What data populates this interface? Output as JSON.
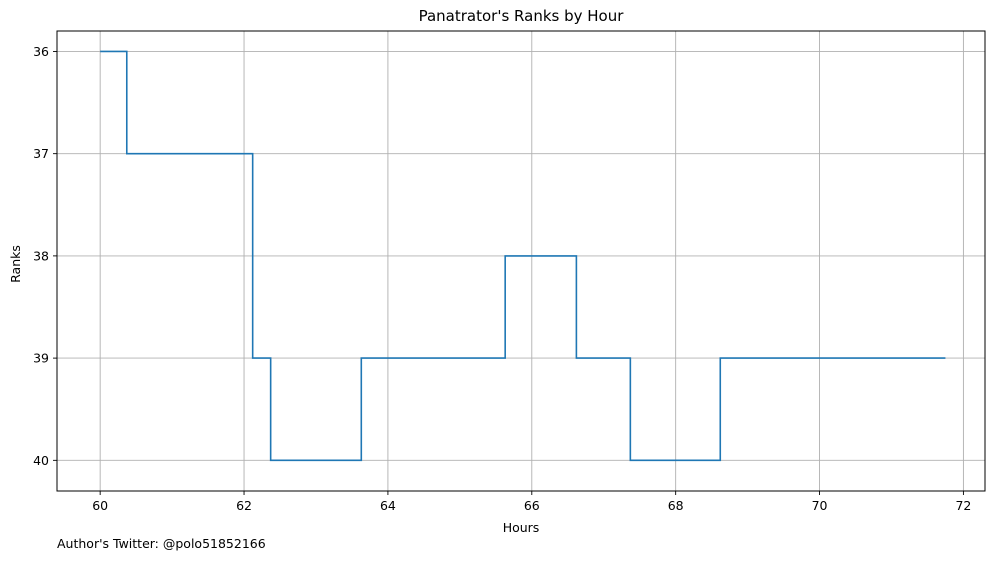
{
  "chart_data": {
    "type": "line",
    "drawstyle": "steps-post",
    "title": "Panatrator's Ranks by Hour",
    "xlabel": "Hours",
    "ylabel": "Ranks",
    "xlim": [
      59.4,
      72.3
    ],
    "ylim": [
      40.3,
      35.8
    ],
    "y_inverted": true,
    "grid": true,
    "x_ticks": [
      60,
      62,
      64,
      66,
      68,
      70,
      72
    ],
    "y_ticks": [
      36,
      37,
      38,
      39,
      40
    ],
    "line_color": "#1f77b4",
    "series": [
      {
        "x": [
          60.0,
          60.37,
          62.12,
          62.37,
          63.63,
          65.63,
          66.62,
          67.37,
          68.62,
          71.75
        ],
        "y": [
          36,
          37,
          39,
          40,
          39,
          38,
          39,
          40,
          39,
          39
        ]
      }
    ]
  },
  "footer": {
    "credit": "Author's Twitter: @polo51852166"
  }
}
